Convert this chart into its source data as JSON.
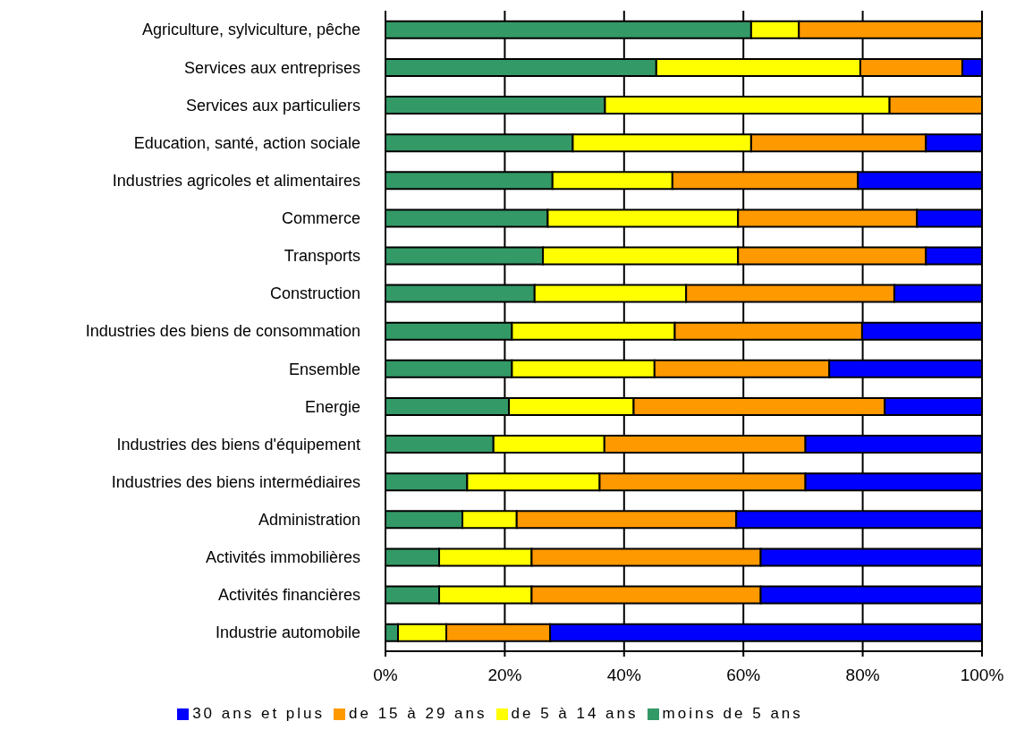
{
  "chart_data": {
    "type": "bar",
    "orientation": "horizontal",
    "stacked": true,
    "categories": [
      "Agriculture, sylviculture, pêche",
      "Services aux entreprises",
      "Services aux particuliers",
      "Education, santé, action sociale",
      "Industries agricoles et alimentaires",
      "Commerce",
      "Transports",
      "Construction",
      "Industries des biens de consommation",
      "Ensemble",
      "Energie",
      "Industries des biens d'équipement",
      "Industries des biens intermédiaires",
      "Administration",
      "Activités immobilières",
      "Activités financières",
      "Industrie automobile"
    ],
    "series": [
      {
        "name": "moins de 5 ans",
        "color": "#339966",
        "values": [
          61.3,
          45.4,
          36.8,
          31.4,
          28.0,
          27.2,
          26.4,
          25.0,
          21.2,
          21.2,
          20.7,
          18.1,
          13.7,
          12.9,
          9.0,
          9.0,
          2.1
        ]
      },
      {
        "name": "de 5 à 14 ans",
        "color": "#ffff00",
        "values": [
          8.0,
          34.2,
          47.7,
          29.9,
          20.1,
          31.9,
          32.7,
          25.4,
          27.3,
          23.9,
          20.9,
          18.6,
          22.2,
          9.1,
          15.5,
          15.5,
          8.1
        ]
      },
      {
        "name": "de 15 à 29 ans",
        "color": "#ff9900",
        "values": [
          30.7,
          17.1,
          15.5,
          29.3,
          31.1,
          30.0,
          31.5,
          34.9,
          31.4,
          29.3,
          42.1,
          33.7,
          34.5,
          36.8,
          38.4,
          38.4,
          17.4
        ]
      },
      {
        "name": "30 ans et plus",
        "color": "#0000ff",
        "values": [
          0,
          3.3,
          0,
          9.4,
          20.8,
          10.9,
          9.4,
          14.7,
          20.1,
          25.6,
          16.3,
          29.6,
          29.6,
          41.2,
          37.1,
          37.1,
          72.4
        ]
      }
    ],
    "xlim": [
      0,
      100
    ],
    "xticks": [
      {
        "value": 0,
        "label": "0%"
      },
      {
        "value": 20,
        "label": "20%"
      },
      {
        "value": 40,
        "label": "40%"
      },
      {
        "value": 60,
        "label": "60%"
      },
      {
        "value": 80,
        "label": "80%"
      },
      {
        "value": 100,
        "label": "100%"
      }
    ],
    "grid": "x",
    "legend": "bottom"
  }
}
